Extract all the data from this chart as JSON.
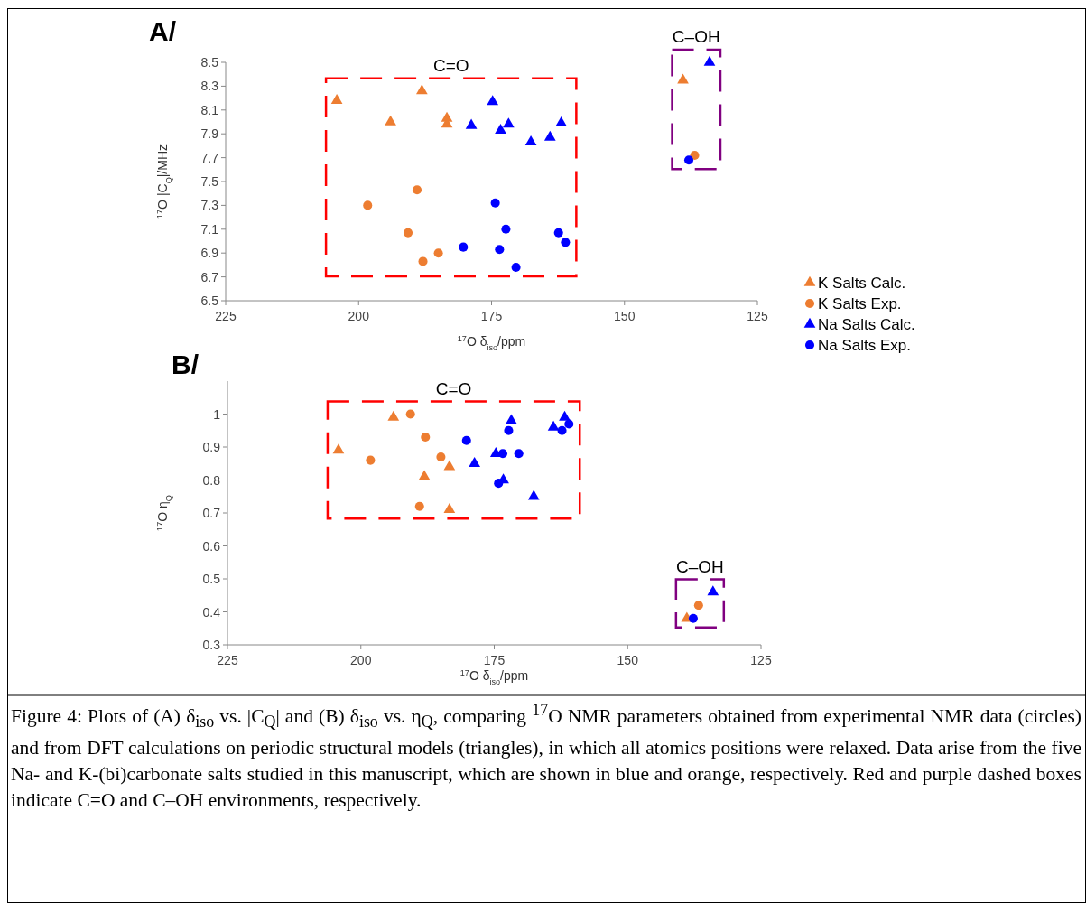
{
  "chart_data": [
    {
      "type": "scatter",
      "title": "A/",
      "xlabel": "$^{17}$O δ$_{iso}$/ppm",
      "ylabel": "$^{17}$O |C$_{Q}$|/MHz",
      "xlim": [
        225,
        125
      ],
      "xticks": [
        225,
        200,
        175,
        150,
        125
      ],
      "ylim": [
        6.5,
        8.5
      ],
      "yticks": [
        6.5,
        6.7,
        6.9,
        7.1,
        7.3,
        7.5,
        7.7,
        7.9,
        8.1,
        8.3,
        8.5
      ],
      "legend": "right",
      "series": [
        {
          "name": "K Salts Calc.",
          "color": "#ed7d31",
          "marker": "triangle",
          "x": [
            204.1,
            194.0,
            188.1,
            183.4,
            183.4,
            139.0
          ],
          "values": [
            8.18,
            8.0,
            8.26,
            8.03,
            7.98,
            8.35
          ]
        },
        {
          "name": "K Salts Exp.",
          "color": "#ed7d31",
          "marker": "circle",
          "x": [
            198.3,
            189.0,
            190.7,
            187.9,
            185.0,
            136.8
          ],
          "values": [
            7.3,
            7.43,
            7.07,
            6.83,
            6.9,
            7.72
          ]
        },
        {
          "name": "Na Salts Calc.",
          "color": "#0000ff",
          "marker": "triangle",
          "x": [
            174.8,
            178.8,
            173.3,
            171.8,
            167.6,
            164.0,
            161.9,
            134.0
          ],
          "values": [
            8.17,
            7.97,
            7.93,
            7.98,
            7.83,
            7.87,
            7.99,
            8.5
          ]
        },
        {
          "name": "Na Salts Exp.",
          "color": "#0000ff",
          "marker": "circle",
          "x": [
            180.3,
            174.3,
            172.3,
            173.5,
            170.4,
            162.4,
            161.1,
            137.9
          ],
          "values": [
            6.95,
            7.32,
            7.1,
            6.93,
            6.78,
            7.07,
            6.99,
            7.68
          ]
        }
      ],
      "annotations": [
        "C=O",
        "C–OH"
      ]
    },
    {
      "type": "scatter",
      "title": "B/",
      "xlabel": "$^{17}$O δ$_{iso}$/ppm",
      "ylabel": "$^{17}$O η$_{Q}$",
      "xlim": [
        225,
        125
      ],
      "xticks": [
        225,
        200,
        175,
        150,
        125
      ],
      "ylim": [
        0.3,
        1.1
      ],
      "yticks": [
        0.3,
        0.4,
        0.5,
        0.6,
        0.7,
        0.8,
        0.9,
        1
      ],
      "series": [
        {
          "color": "#ed7d31",
          "marker": "triangle",
          "x": [
            204.2,
            193.9,
            188.1,
            183.4,
            183.4,
            138.9
          ],
          "values": [
            0.89,
            0.99,
            0.81,
            0.84,
            0.71,
            0.38
          ]
        },
        {
          "color": "#ed7d31",
          "marker": "circle",
          "x": [
            190.7,
            187.9,
            198.2,
            185.0,
            189.0,
            136.7
          ],
          "values": [
            1.0,
            0.93,
            0.86,
            0.87,
            0.72,
            0.42
          ]
        },
        {
          "color": "#0000ff",
          "marker": "triangle",
          "x": [
            178.7,
            174.7,
            171.8,
            173.3,
            167.6,
            163.9,
            161.8,
            134.0
          ],
          "values": [
            0.85,
            0.88,
            0.98,
            0.8,
            0.75,
            0.96,
            0.99,
            0.46
          ]
        },
        {
          "color": "#0000ff",
          "marker": "circle",
          "x": [
            180.2,
            172.3,
            173.4,
            174.2,
            170.4,
            162.3,
            161.0,
            137.7
          ],
          "values": [
            0.92,
            0.95,
            0.88,
            0.79,
            0.88,
            0.95,
            0.97,
            0.38
          ]
        }
      ],
      "annotations": [
        "C=O",
        "C–OH",
        "Figure 4: Plots of (A) δ$_{iso}$ vs. |C$_{Q}$| and (B) δ$_{iso}$ vs. η$_{Q}$, comparing $^{17}$O NMR parameters obtained from experimental NMR data (circles) and from DFT calculations on periodic structural models (triangles), in which all atomics positions were relaxed. Data arise from the five Na- and K-(bi)carbonate salts studied in this manuscript, which are shown in blue and orange, respectively. Red and purple dashed boxes indicate C=O and C–OH environments, respectively."
      ]
    }
  ]
}
